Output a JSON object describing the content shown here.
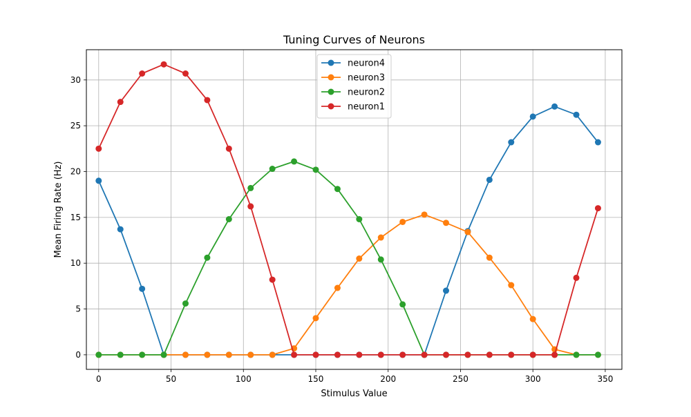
{
  "chart_data": {
    "type": "line",
    "title": "Tuning Curves of Neurons",
    "xlabel": "Stimulus Value",
    "ylabel": "Mean Firing Rate (Hz)",
    "xlim": [
      -8.5,
      361.5
    ],
    "ylim": [
      -1.59,
      33.3
    ],
    "xticks": [
      0,
      50,
      100,
      150,
      200,
      250,
      300,
      350
    ],
    "yticks": [
      0,
      5,
      10,
      15,
      20,
      25,
      30
    ],
    "grid": true,
    "legend_position": "top-center",
    "x": [
      0,
      15,
      30,
      45,
      60,
      75,
      90,
      105,
      120,
      135,
      150,
      165,
      180,
      195,
      210,
      225,
      240,
      255,
      270,
      285,
      300,
      315,
      330,
      345
    ],
    "series": [
      {
        "name": "neuron4",
        "color": "#1f77b4",
        "values": [
          19.0,
          13.7,
          7.2,
          0.0,
          0.0,
          0.0,
          0.0,
          0.0,
          0.0,
          0.0,
          0.0,
          0.0,
          0.0,
          0.0,
          0.0,
          0.0,
          7.0,
          13.5,
          19.1,
          23.2,
          26.0,
          27.1,
          26.2,
          23.2
        ]
      },
      {
        "name": "neuron3",
        "color": "#ff7f0e",
        "values": [
          0.0,
          0.0,
          0.0,
          0.0,
          0.0,
          0.0,
          0.0,
          0.0,
          0.0,
          0.7,
          4.0,
          7.3,
          10.5,
          12.8,
          14.5,
          15.3,
          14.4,
          13.4,
          10.6,
          7.6,
          3.9,
          0.6,
          0.0,
          0.0
        ]
      },
      {
        "name": "neuron2",
        "color": "#2ca02c",
        "values": [
          0.0,
          0.0,
          0.0,
          0.0,
          5.6,
          10.6,
          14.8,
          18.2,
          20.3,
          21.1,
          20.2,
          18.1,
          14.8,
          10.4,
          5.5,
          0.0,
          0.0,
          0.0,
          0.0,
          0.0,
          0.0,
          0.0,
          0.0,
          0.0
        ]
      },
      {
        "name": "neuron1",
        "color": "#d62728",
        "values": [
          22.5,
          27.6,
          30.7,
          31.7,
          30.7,
          27.8,
          22.5,
          16.2,
          8.2,
          0.0,
          0.0,
          0.0,
          0.0,
          0.0,
          0.0,
          0.0,
          0.0,
          0.0,
          0.0,
          0.0,
          0.0,
          0.0,
          8.4,
          16.0
        ]
      }
    ]
  }
}
